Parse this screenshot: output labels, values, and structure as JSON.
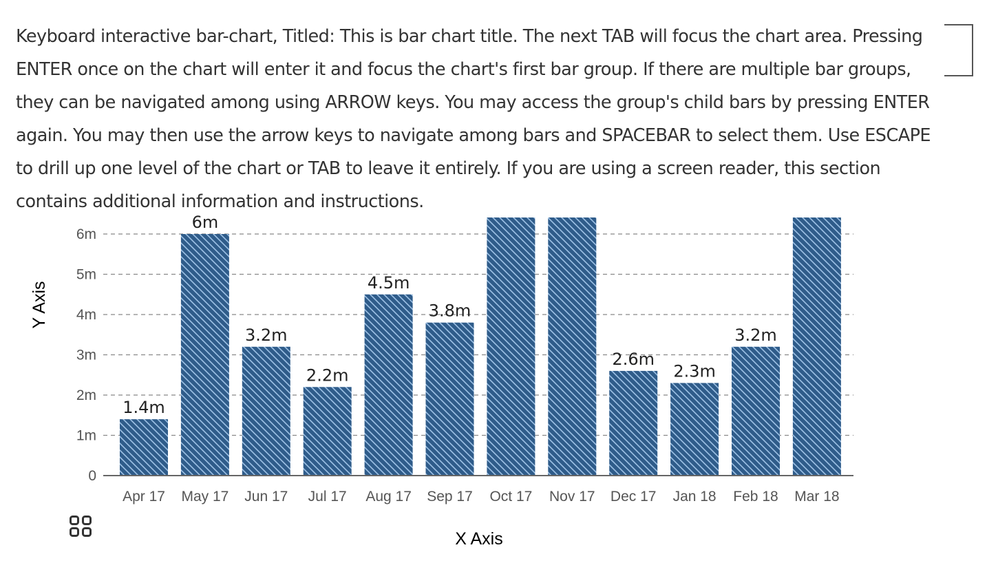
{
  "description": "Keyboard interactive bar-chart, Titled: This is bar chart title. The next TAB will focus the chart area. Pressing ENTER once on the chart will enter it and focus the chart's first bar group. If there are multiple bar groups, they can be navigated among using ARROW keys. You may access the group's child bars by pressing ENTER again. You may then use the arrow keys to navigate among bars and SPACEBAR to select them. Use ESCAPE to drill up one level of the chart or TAB to leave it entirely. If you are using a screen reader, this section contains additional information and instructions.",
  "menu_icon": "grid-menu-icon",
  "colors": {
    "bar": "#2f5c8a",
    "hatch": "#9ec2e6",
    "grid": "#888888",
    "axis": "#666666",
    "text": "#333333"
  },
  "chart_data": {
    "type": "bar",
    "xlabel": "X Axis",
    "ylabel": "Y Axis",
    "categories": [
      "Apr 17",
      "May 17",
      "Jun 17",
      "Jul 17",
      "Aug 17",
      "Sep 17",
      "Oct 17",
      "Nov 17",
      "Dec 17",
      "Jan 18",
      "Feb 18",
      "Mar 18"
    ],
    "values": [
      1.4,
      6,
      3.2,
      2.2,
      4.5,
      3.8,
      6.5,
      6.5,
      2.6,
      2.3,
      3.2,
      6.5
    ],
    "data_labels": [
      "1.4m",
      "6m",
      "3.2m",
      "2.2m",
      "4.5m",
      "3.8m",
      "",
      "",
      "2.6m",
      "2.3m",
      "3.2m",
      ""
    ],
    "yticks": [
      "0",
      "1m",
      "2m",
      "3m",
      "4m",
      "5m",
      "6m"
    ],
    "ylim": [
      0,
      6.5
    ],
    "grid": true,
    "pattern": "diagonal-hatch"
  }
}
